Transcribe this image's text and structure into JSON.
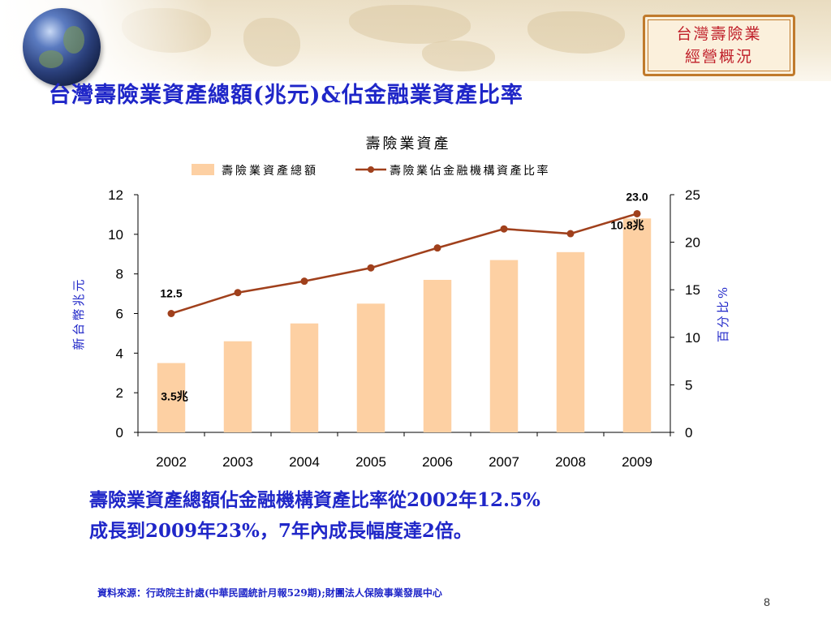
{
  "section_badge": {
    "line1": "台灣壽險業",
    "line2": "經營概況"
  },
  "page_title": "台灣壽險業資產總額(兆元)&佔金融業資產比率",
  "summary": {
    "line1": "壽險業資產總額佔金融機構資產比率從2002年12.5%",
    "line2": "成長到2009年23%，7年內成長幅度達2倍。"
  },
  "source": "資料來源：行政院主計處(中華民國統計月報529期);財團法人保險事業發展中心",
  "page_number": "8",
  "colors": {
    "title": "#1f26c8",
    "bar": "#fdd0a3",
    "line": "#a0401c",
    "axis_text": "#000000",
    "legend_text": "#000000",
    "badge_text": "#c0202a",
    "badge_border": "#c07a2c"
  },
  "icons": {
    "globe": "globe-icon"
  },
  "chart_data": {
    "type": "bar",
    "title": "壽險業資產",
    "categories": [
      "2002",
      "2003",
      "2004",
      "2005",
      "2006",
      "2007",
      "2008",
      "2009"
    ],
    "series": [
      {
        "name": "壽險業資產總額",
        "type": "bar",
        "axis": "left",
        "values": [
          3.5,
          4.6,
          5.5,
          6.5,
          7.7,
          8.7,
          9.1,
          10.8
        ]
      },
      {
        "name": "壽險業佔金融機構資產比率",
        "type": "line",
        "axis": "right",
        "values": [
          12.5,
          14.7,
          15.9,
          17.3,
          19.4,
          21.4,
          20.9,
          23.0
        ]
      }
    ],
    "ylabel": "新台幣兆元",
    "y2label": "百分比%",
    "ylim": [
      0,
      12
    ],
    "y2lim": [
      0,
      25
    ],
    "yticks": [
      "0",
      "2",
      "4",
      "6",
      "8",
      "10",
      "12"
    ],
    "y2ticks": [
      "0",
      "5",
      "10",
      "15",
      "20",
      "25"
    ],
    "annotations": [
      {
        "text": "12.5",
        "series": 1,
        "index": 0
      },
      {
        "text": "23.0",
        "series": 1,
        "index": 7
      },
      {
        "text": "3.5兆",
        "series": 0,
        "index": 0
      },
      {
        "text": "10.8兆",
        "series": 0,
        "index": 7
      }
    ],
    "legend_position": "top-center",
    "grid": false
  }
}
